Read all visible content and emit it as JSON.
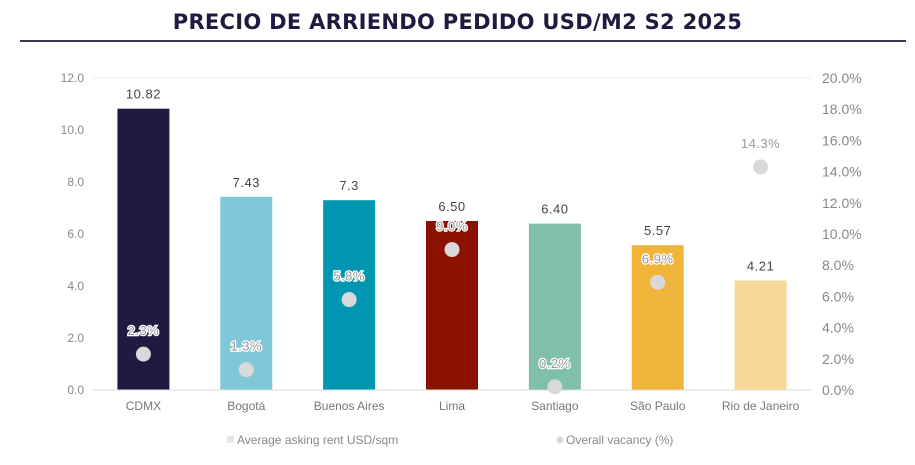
{
  "chart_data": {
    "type": "bar",
    "title": "PRECIO DE ARRIENDO PEDIDO USD/M2  S2 2025",
    "categories": [
      "CDMX",
      "Bogotá",
      "Buenos Aires",
      "Lima",
      "Santiago",
      "São Paulo",
      "Rio de Janeiro"
    ],
    "series": [
      {
        "name": "Average asking rent USD/sqm",
        "type": "bar",
        "axis": "left",
        "values": [
          10.82,
          7.43,
          7.3,
          6.5,
          6.4,
          5.57,
          4.21
        ],
        "labels": [
          "10.82",
          "7.43",
          "7.3",
          "6.50",
          "6.40",
          "5.57",
          "4.21"
        ],
        "colors": [
          "#1f1a40",
          "#80c8d8",
          "#0095b0",
          "#8b1100",
          "#80c0a8",
          "#f0b43a",
          "#f7d898"
        ]
      },
      {
        "name": "Overall vacancy (%)",
        "type": "scatter",
        "axis": "right",
        "values": [
          2.3,
          1.3,
          5.8,
          9.0,
          0.2,
          6.9,
          14.3
        ],
        "labels": [
          "2.3%",
          "1.3%",
          "5.8%",
          "9.0%",
          "0.2%",
          "6.9%",
          "14.3%"
        ],
        "color": "#d9d9d9"
      }
    ],
    "y_left": {
      "range": [
        0,
        12
      ],
      "ticks": [
        "0.0",
        "2.0",
        "4.0",
        "6.0",
        "8.0",
        "10.0",
        "12.0"
      ]
    },
    "y_right": {
      "range": [
        0,
        20
      ],
      "ticks": [
        "0.0%",
        "2.0%",
        "4.0%",
        "6.0%",
        "8.0%",
        "10.0%",
        "12.0%",
        "14.0%",
        "16.0%",
        "18.0%",
        "20.0%"
      ]
    },
    "legend_position": "bottom"
  }
}
